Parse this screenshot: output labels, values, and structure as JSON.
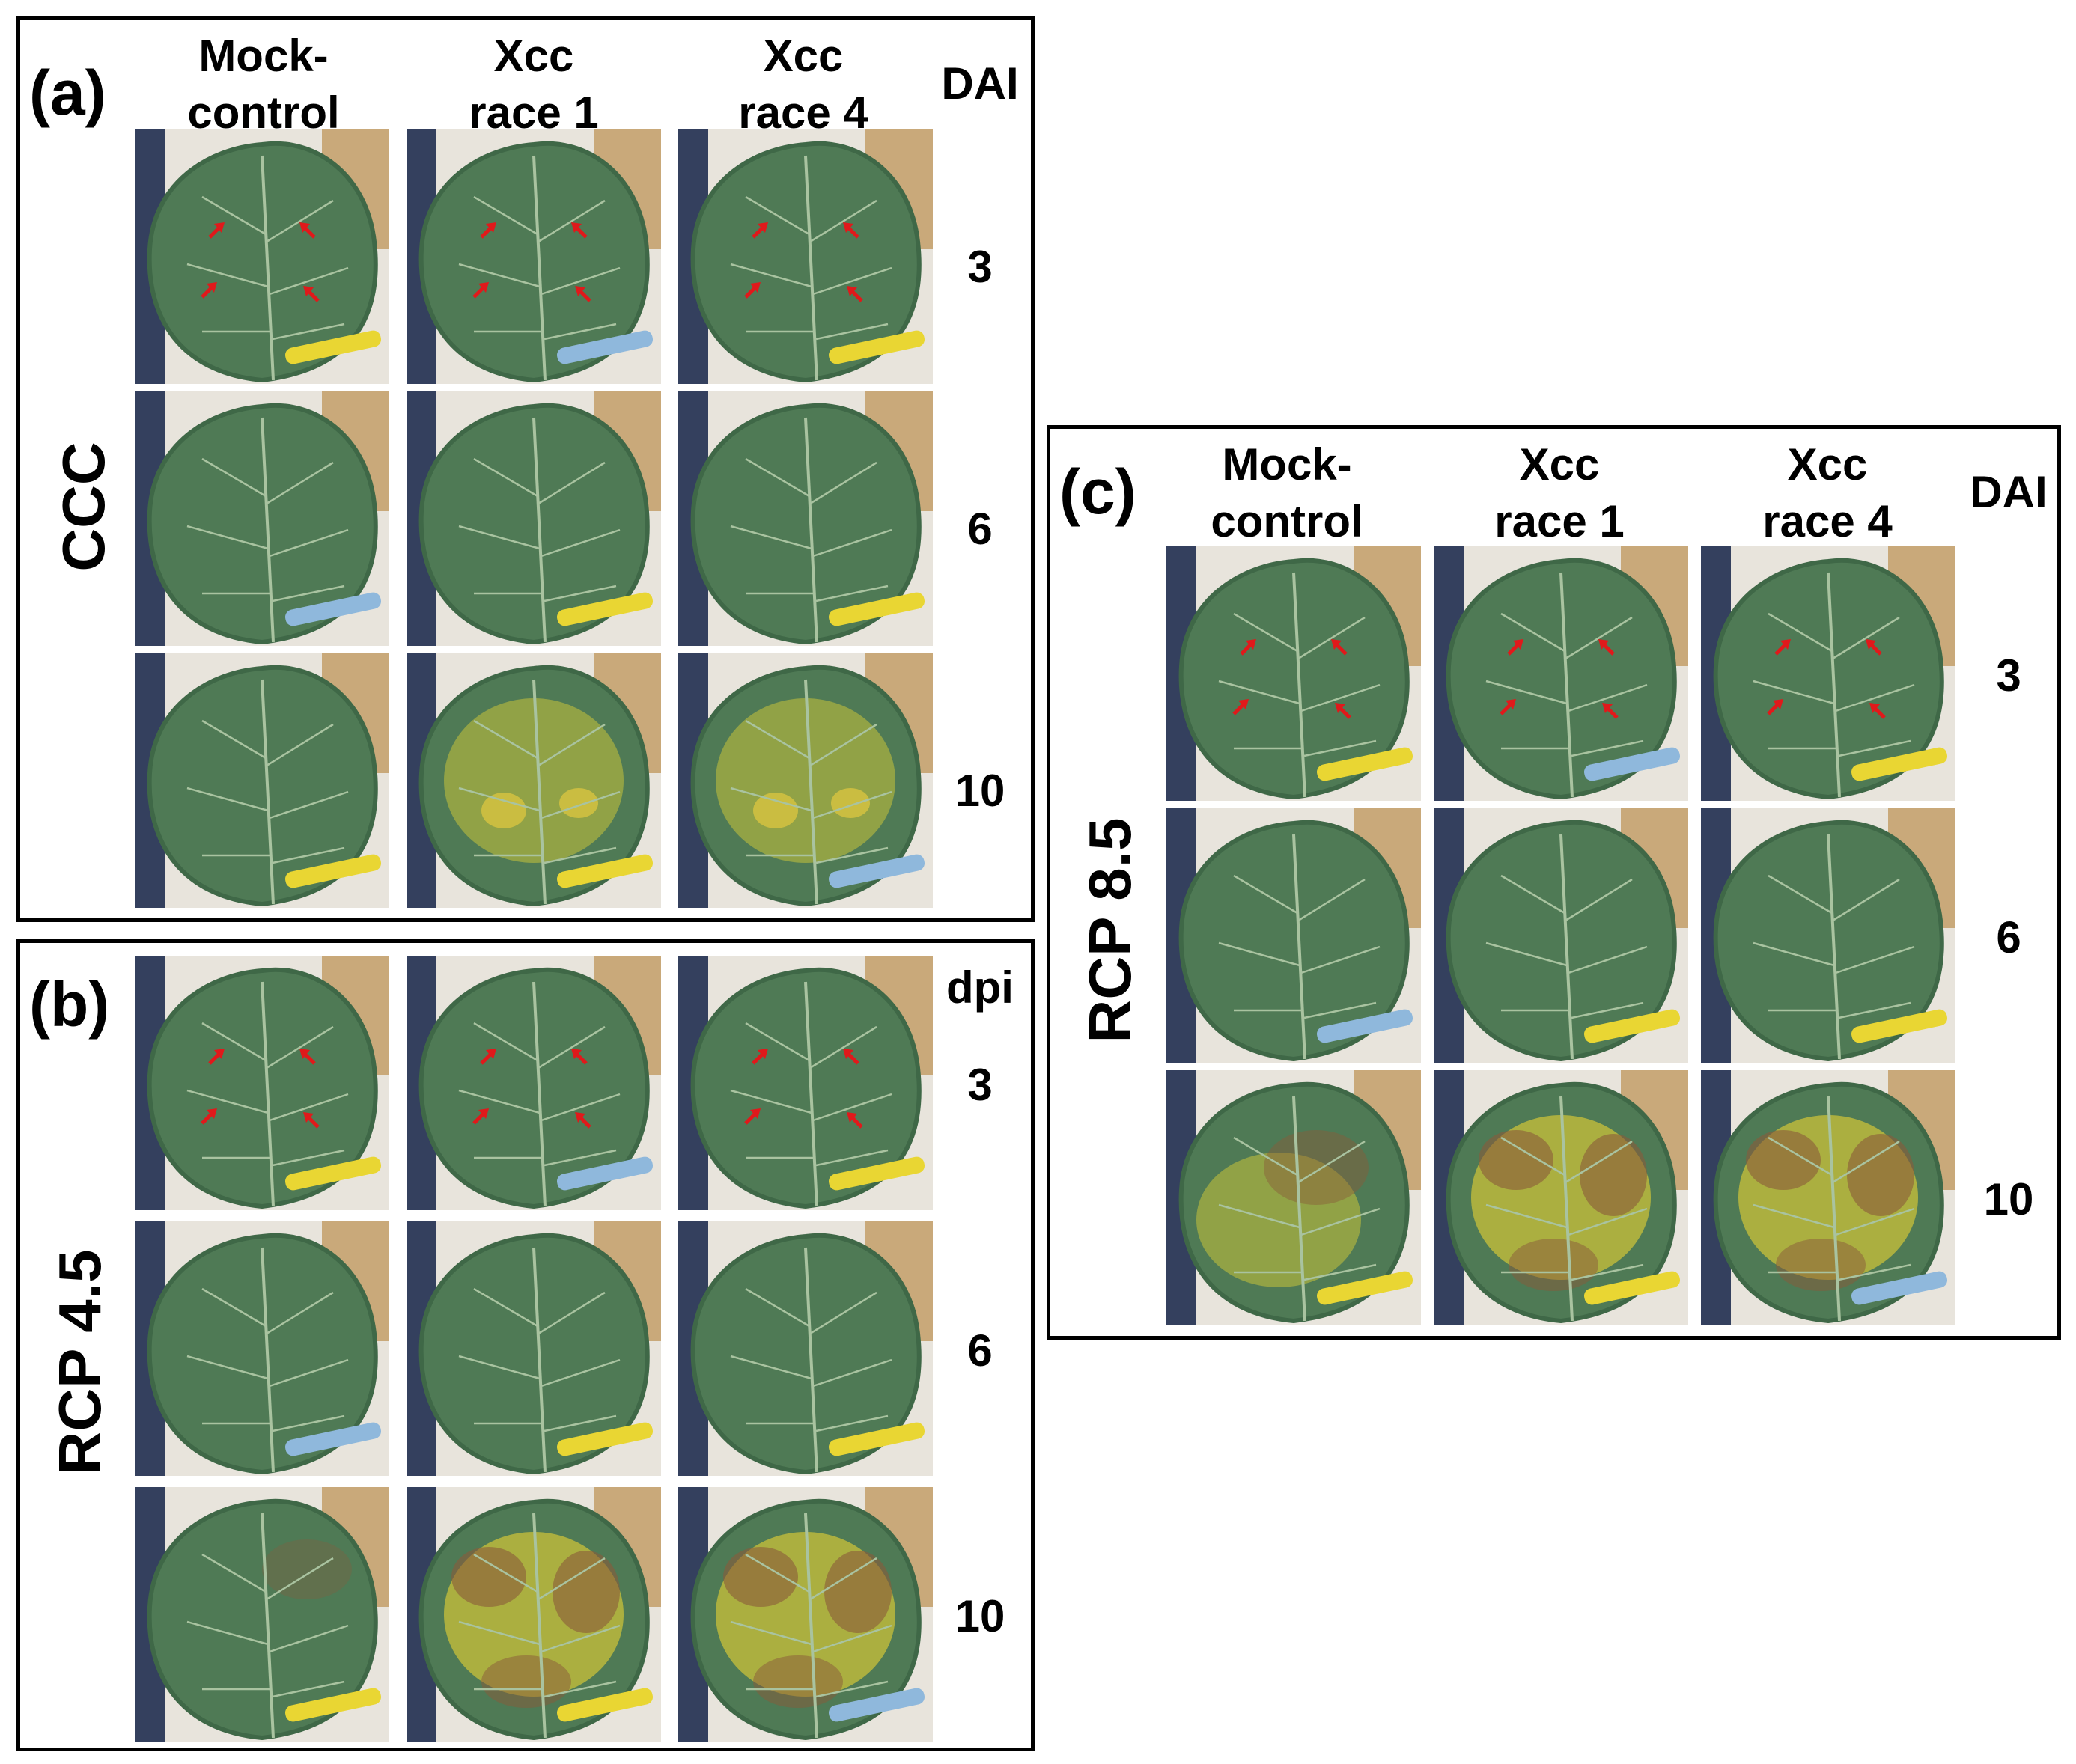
{
  "panels": [
    {
      "letter": "(a)",
      "condition": "CCC",
      "columns": [
        "Mock-\ncontrol",
        "Xcc\nrace 1",
        "Xcc\nrace 4"
      ],
      "time_header": "DAI",
      "times": [
        "3",
        "6",
        "10"
      ]
    },
    {
      "letter": "(b)",
      "condition": "RCP 4.5",
      "time_header": "dpi",
      "times": [
        "3",
        "6",
        "10"
      ]
    },
    {
      "letter": "(c)",
      "condition": "RCP 8.5",
      "columns": [
        "Mock-\ncontrol",
        "Xcc\nrace 1",
        "Xcc\nrace 4"
      ],
      "time_header": "DAI",
      "times": [
        "3",
        "6",
        "10"
      ]
    }
  ],
  "colors": {
    "leaf_green": "#4f7a55",
    "leaf_dark": "#3f6847",
    "vein": "#a9c3a0",
    "background_card": "#c9a97a",
    "arrow_red": "#e0191b",
    "chlorosis_yellow": "#c9c23a",
    "necrosis_brown": "#8a5a3a",
    "clip_yellow": "#e9d633",
    "clip_blue": "#8fb8dc"
  },
  "photo_icon": "leaf-photo-icon"
}
